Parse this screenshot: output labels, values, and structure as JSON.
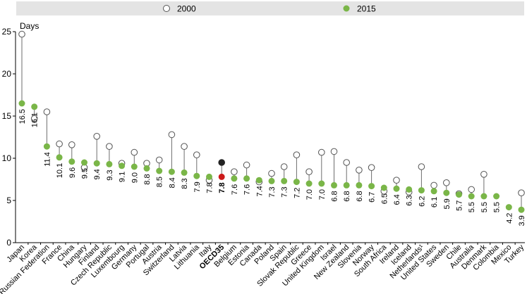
{
  "chart_data": {
    "type": "dot",
    "ylabel": "Days",
    "ylim": [
      0,
      25
    ],
    "yticks": [
      0,
      5,
      10,
      15,
      20,
      25
    ],
    "grid": false,
    "legend_position": "top-center",
    "series": [
      {
        "name": "2000",
        "marker": "hollow-circle"
      },
      {
        "name": "2015",
        "marker": "filled-circle"
      }
    ],
    "categories": [
      "Japan",
      "Korea",
      "Russian Federation",
      "France",
      "China",
      "Hungary",
      "Finland",
      "Czech Republic",
      "Luxembourg",
      "Germany",
      "Portugal",
      "Austria",
      "Switzerland",
      "Latvia",
      "Lithuania",
      "Italy",
      "OECD35",
      "Belgium",
      "Estonia",
      "Canada",
      "Poland",
      "Spain",
      "Slovak Republic",
      "Greece",
      "United Kingdom",
      "Israel",
      "New Zealand",
      "Slovenia",
      "Norway",
      "South Africa",
      "Ireland",
      "Iceland",
      "Netherlands¹",
      "United States",
      "Sweden",
      "Chile",
      "Australia",
      "Denmark",
      "Colombia",
      "Mexico",
      "Turkey"
    ],
    "values_2015": [
      16.5,
      16.1,
      11.4,
      10.1,
      9.6,
      9.5,
      9.4,
      9.3,
      9.1,
      9.0,
      8.8,
      8.5,
      8.4,
      8.3,
      7.9,
      7.8,
      7.8,
      7.6,
      7.6,
      7.4,
      7.3,
      7.3,
      7.2,
      7.0,
      7.0,
      6.8,
      6.8,
      6.8,
      6.7,
      6.5,
      6.4,
      6.3,
      6.2,
      6.1,
      5.9,
      5.7,
      5.5,
      5.5,
      5.5,
      4.2,
      3.9
    ],
    "labels_2015": [
      "16.5",
      "16.1",
      "11.4",
      "10.1",
      "9.6",
      "9.5",
      "9.4",
      "9.3",
      "9.1",
      "9.0",
      "8.8",
      "8.5",
      "8.4",
      "8.3",
      "7.9",
      "7.8",
      "7.8",
      "7.6",
      "7.6",
      "7.4",
      "7.3",
      "7.3",
      "7.2",
      "7.0",
      "7.0",
      "6.8",
      "6.8",
      "6.8",
      "6.7",
      "6.5",
      "6.4",
      "6.3",
      "6.2",
      "6.1",
      "5.9",
      "5.7",
      "5.5",
      "5.5",
      "5.5",
      "4.2",
      "3.9"
    ],
    "values_2000": [
      24.7,
      14.7,
      15.5,
      11.7,
      11.6,
      8.9,
      12.6,
      11.4,
      9.4,
      10.7,
      9.4,
      9.8,
      12.8,
      11.4,
      10.4,
      7.4,
      9.5,
      8.4,
      9.2,
      7.2,
      8.2,
      9.0,
      10.4,
      8.4,
      10.7,
      10.8,
      9.5,
      8.6,
      8.9,
      6.1,
      7.4,
      6.0,
      9.0,
      6.8,
      7.1,
      5.8,
      6.3,
      8.1,
      null,
      null,
      5.9
    ],
    "highlight_category": "OECD35",
    "colors": {
      "series_2015": "#7ab648",
      "series_2000_fill": "#ffffff",
      "series_2000_stroke": "#555555",
      "oecd_2015": "#cc1a1a",
      "oecd_2000": "#222222",
      "connector": "#6e6e6e",
      "legend_bg": "#e4e4e4"
    }
  }
}
